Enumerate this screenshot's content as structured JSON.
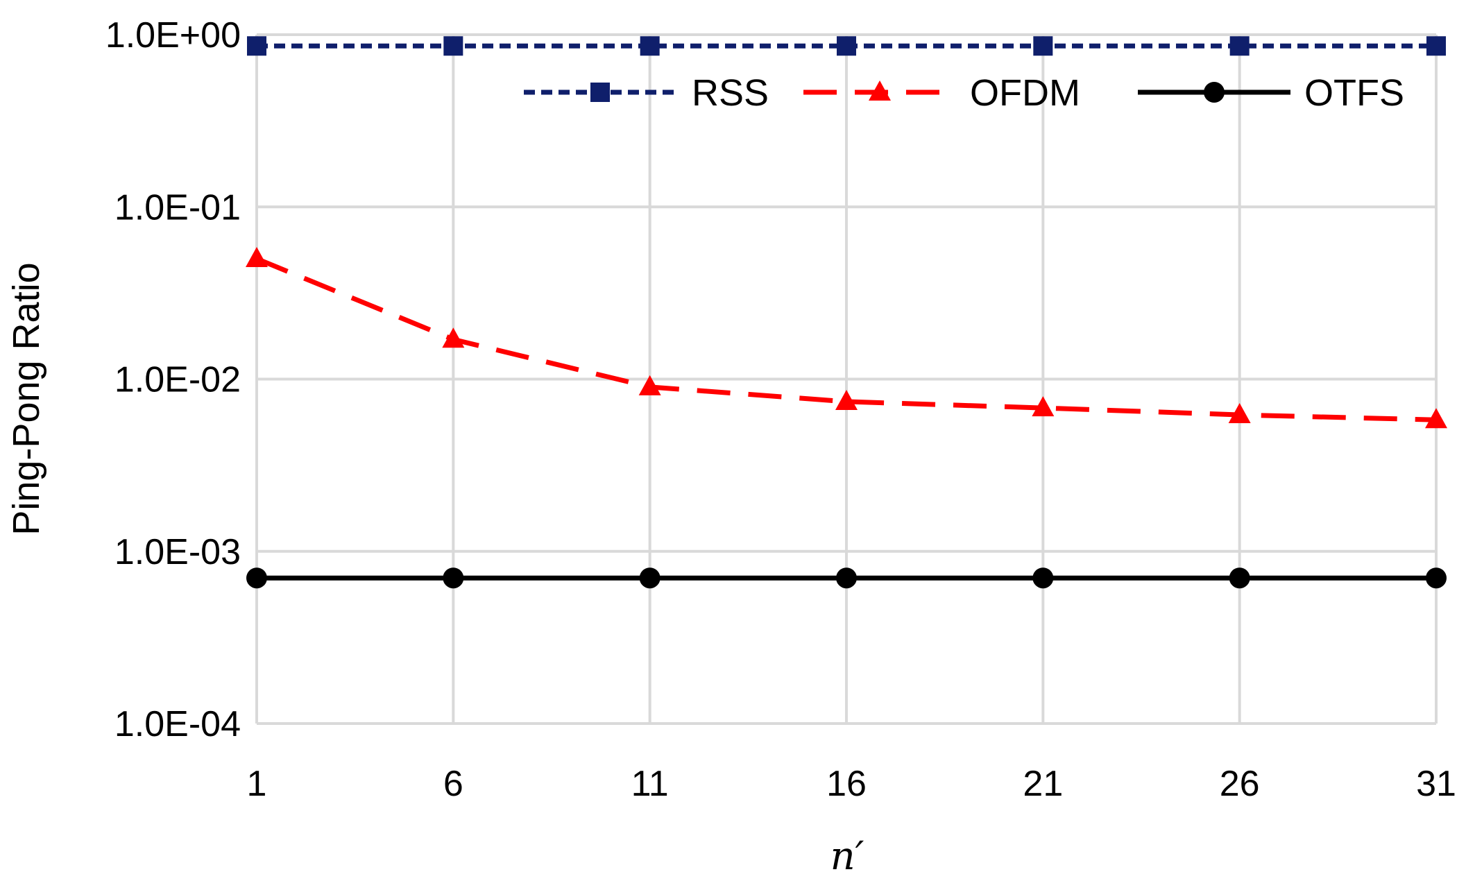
{
  "chart_data": {
    "type": "line",
    "title": "",
    "xlabel": "n′",
    "ylabel": "Ping-Pong Ratio",
    "y_scale": "log",
    "ylim": [
      0.0001,
      1
    ],
    "y_ticks": [
      1,
      0.1,
      0.01,
      0.001,
      0.0001
    ],
    "y_tick_labels": [
      "1.0E+00",
      "1.0E-01",
      "1.0E-02",
      "1.0E-03",
      "1.0E-04"
    ],
    "x": [
      1,
      6,
      11,
      16,
      21,
      26,
      31
    ],
    "x_tick_labels": [
      "1",
      "6",
      "11",
      "16",
      "21",
      "26",
      "31"
    ],
    "grid": true,
    "legend_position": "top",
    "series": [
      {
        "name": "RSS",
        "values": [
          0.86,
          0.86,
          0.86,
          0.86,
          0.86,
          0.86,
          0.86
        ],
        "color": "#0f1f6b",
        "marker": "square",
        "line": "dotted"
      },
      {
        "name": "OFDM",
        "values": [
          0.05,
          0.017,
          0.009,
          0.0074,
          0.0068,
          0.0062,
          0.0058
        ],
        "color": "#ff0000",
        "marker": "triangle",
        "line": "dashed"
      },
      {
        "name": "OTFS",
        "values": [
          0.0007,
          0.0007,
          0.0007,
          0.0007,
          0.0007,
          0.0007,
          0.0007
        ],
        "color": "#000000",
        "marker": "circle",
        "line": "solid"
      }
    ]
  }
}
